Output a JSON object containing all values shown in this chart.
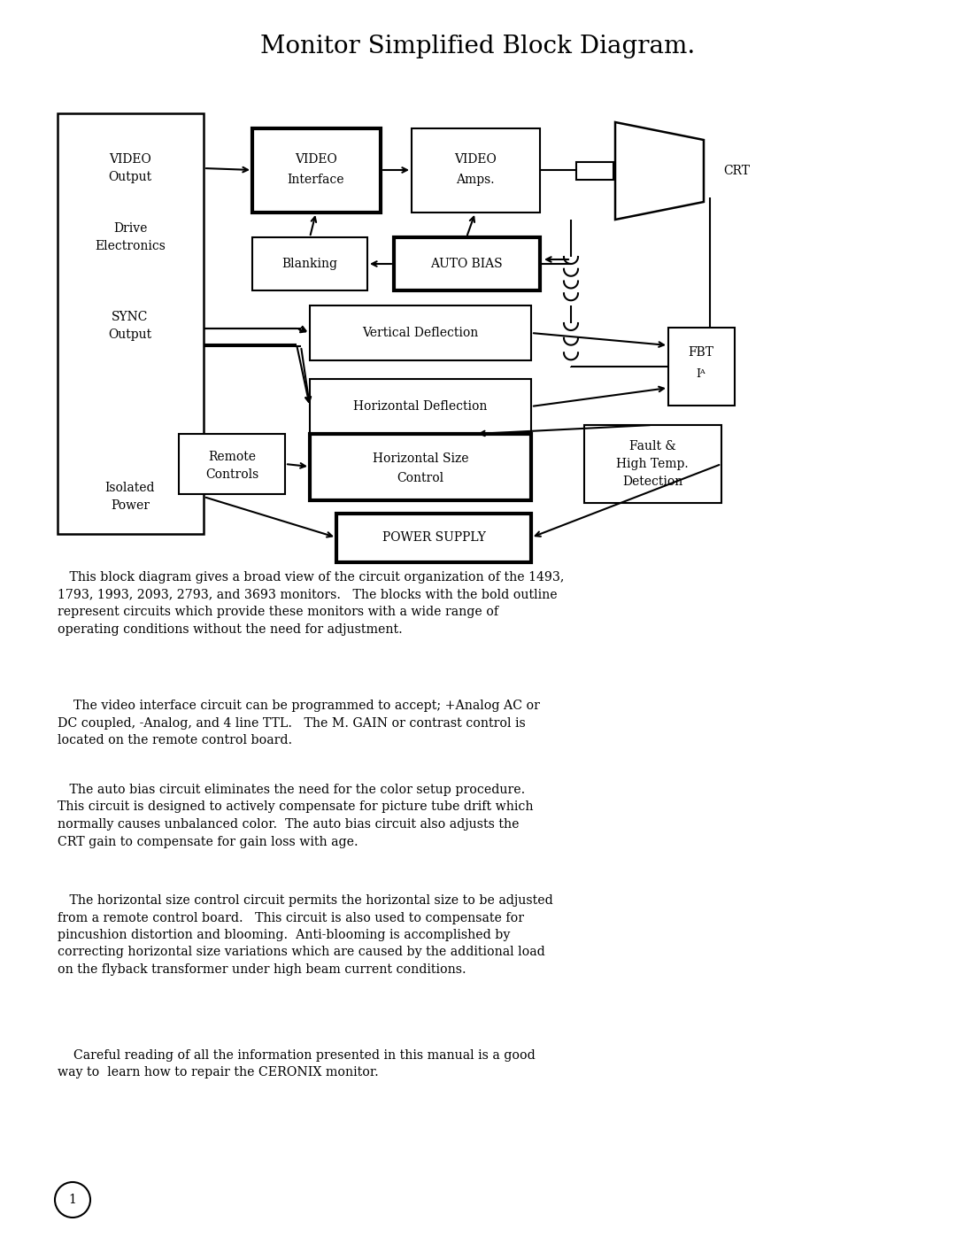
{
  "title": "Monitor Simplified Block Diagram.",
  "title_fontsize": 20,
  "bg_color": "#ffffff",
  "para1": "   This block diagram gives a broad view of the circuit organization of the 1493,\n1793, 1993, 2093, 2793, and 3693 monitors.   The blocks with the bold outline\nrepresent circuits which provide these monitors with a wide range of\noperating conditions without the need for adjustment.",
  "para2": "    The video interface circuit can be programmed to accept; +Analog AC or\nDC coupled, -Analog, and 4 line TTL.   The M. GAIN or contrast control is\nlocated on the remote control board.",
  "para3": "   The auto bias circuit eliminates the need for the color setup procedure.\nThis circuit is designed to actively compensate for picture tube drift which\nnormally causes unbalanced color.  The auto bias circuit also adjusts the\nCRT gain to compensate for gain loss with age.",
  "para4": "   The horizontal size control circuit permits the horizontal size to be adjusted\nfrom a remote control board.   This circuit is also used to compensate for\npincushion distortion and blooming.  Anti-blooming is accomplished by\ncorrecting horizontal size variations which are caused by the additional load\non the flyback transformer under high beam current conditions.",
  "para5": "    Careful reading of all the information presented in this manual is a good\nway to  learn how to repair the CERONIX monitor.",
  "page_num": "1"
}
